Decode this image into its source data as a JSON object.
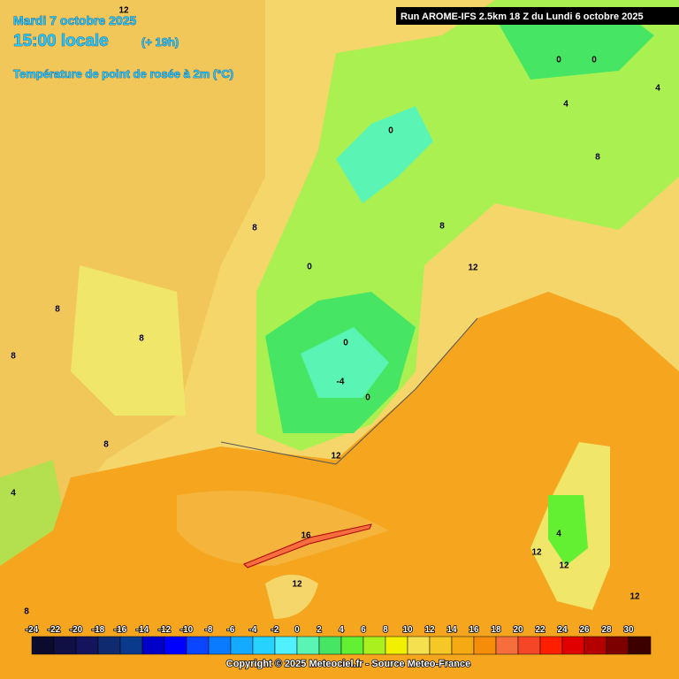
{
  "header": {
    "date": "Mardi 7 octobre 2025",
    "time": "15:00 locale",
    "lead": "(+ 19h)",
    "field": "Température de point de rosée à 2m (°C)",
    "run": "Run AROME-IFS 2.5km 18 Z du Lundi 6 octobre 2025"
  },
  "contour_labels": [
    12,
    8,
    0,
    0,
    -4,
    0,
    12,
    16,
    12,
    12,
    0,
    0,
    0,
    4,
    8,
    8,
    8,
    8,
    4,
    8,
    12,
    4,
    12,
    12,
    8,
    8,
    4
  ],
  "colorbar": {
    "labels": [
      -24,
      -22,
      -20,
      -18,
      -16,
      -14,
      -12,
      -10,
      -8,
      -6,
      -4,
      -2,
      0,
      2,
      4,
      6,
      8,
      10,
      12,
      14,
      16,
      18,
      20,
      22,
      24,
      26,
      28,
      30
    ],
    "colors": [
      "#0b0b2e",
      "#101045",
      "#14145c",
      "#0f2a6e",
      "#0a3a8c",
      "#0000c8",
      "#0000ff",
      "#0a46ff",
      "#0a7aff",
      "#14aaff",
      "#28d2ff",
      "#50f0ff",
      "#5af5b4",
      "#46e664",
      "#64f032",
      "#aaf01e",
      "#f0f000",
      "#f5e150",
      "#f5c828",
      "#f5aa14",
      "#f58c0a",
      "#f56e3c",
      "#f54628",
      "#ff1e00",
      "#e10000",
      "#b40000",
      "#7d0000",
      "#3c0000"
    ]
  },
  "footer": "Copyright © 2025 Meteociel.fr - Source Meteo-France"
}
